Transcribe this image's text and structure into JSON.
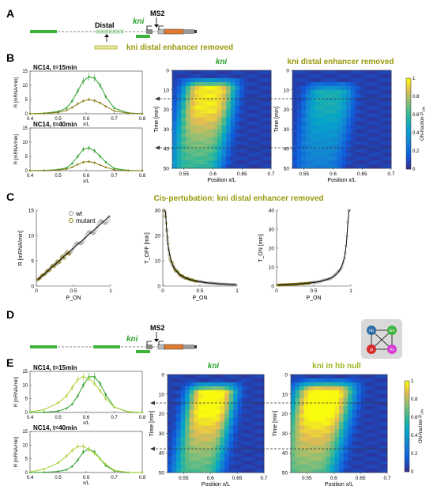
{
  "panels": {
    "A": {
      "letter": "A",
      "distal_label": "Distal",
      "kni_label": "kni",
      "ms2_label": "MS2",
      "caption": "kni distal enhancer removed"
    },
    "B": {
      "letter": "B",
      "heatmap_titles": [
        "kni",
        "kni distal enhancer removed"
      ],
      "colorbar_label": "ON-fraction P",
      "colorbar_sub": "ON",
      "colorbar_ticks": [
        "0",
        "0.2",
        "0.4",
        "0.6",
        "0.8",
        "1"
      ]
    },
    "C": {
      "letter": "C",
      "title": "Cis-pertubation: kni distal enhancer removed",
      "legend": [
        "wt",
        "mutant"
      ]
    },
    "D": {
      "letter": "D",
      "kni_label": "kni",
      "ms2_label": "MS2",
      "network_nodes": [
        "hb",
        "kni",
        "gt",
        "Kr"
      ]
    },
    "E": {
      "letter": "E",
      "heatmap_titles": [
        "kni",
        "kni in hb null"
      ],
      "colorbar_label": "ON-fraction P",
      "colorbar_sub": "ON",
      "colorbar_ticks": [
        "0",
        "0.2",
        "0.4",
        "0.6",
        "0.8",
        "1"
      ]
    }
  },
  "colors": {
    "wt_green": "#2ca02c",
    "mutant_olive": "#8b7d12",
    "light_green": "#a8d030",
    "orange": "#e07b30",
    "title_olive": "#9a9a10"
  },
  "chart_data": [
    {
      "id": "B1",
      "type": "line",
      "title": "NC14, t=15min",
      "xlabel": "x/L",
      "ylabel": "R [mRNA/min]",
      "xlim": [
        0.4,
        0.8
      ],
      "ylim": [
        0,
        15
      ],
      "xticks": [
        "0.4",
        "0.5",
        "0.6",
        "0.7",
        "0.8"
      ],
      "yticks": [
        "0",
        "5",
        "10",
        "15"
      ],
      "x": [
        0.4,
        0.45,
        0.5,
        0.53,
        0.55,
        0.57,
        0.59,
        0.61,
        0.63,
        0.65,
        0.67,
        0.7,
        0.75,
        0.8
      ],
      "series": [
        {
          "color": "#2ca02c",
          "values": [
            0,
            0.2,
            0.8,
            2,
            4.5,
            8,
            11.5,
            13,
            12.5,
            10,
            6,
            2,
            0.3,
            0
          ]
        },
        {
          "color": "#8b7d12",
          "values": [
            0,
            0.1,
            0.5,
            1.2,
            2.2,
            3.5,
            4.5,
            5,
            4.6,
            3.8,
            2.6,
            1,
            0.2,
            0
          ]
        }
      ]
    },
    {
      "id": "B2",
      "type": "line",
      "title": "NC14, t=40min",
      "xlabel": "x/L",
      "ylabel": "R [mRNA/min]",
      "xlim": [
        0.4,
        0.8
      ],
      "ylim": [
        0,
        15
      ],
      "xticks": [
        "0.4",
        "0.5",
        "0.6",
        "0.7",
        "0.8"
      ],
      "yticks": [
        "0",
        "5",
        "10",
        "15"
      ],
      "x": [
        0.4,
        0.45,
        0.5,
        0.53,
        0.55,
        0.57,
        0.59,
        0.61,
        0.63,
        0.65,
        0.67,
        0.7,
        0.75,
        0.8
      ],
      "series": [
        {
          "color": "#2ca02c",
          "values": [
            0,
            0.1,
            0.4,
            1,
            2.5,
            5,
            7.5,
            8,
            7,
            5,
            3,
            0.8,
            0.1,
            0
          ]
        },
        {
          "color": "#8b7d12",
          "values": [
            0,
            0.05,
            0.2,
            0.6,
            1.2,
            2.2,
            3,
            3.2,
            2.8,
            2,
            1.2,
            0.3,
            0,
            0
          ]
        }
      ]
    },
    {
      "id": "E1",
      "type": "line",
      "title": "NC14, t=15min",
      "xlabel": "x/L",
      "ylabel": "R [mRNA/min]",
      "xlim": [
        0.4,
        0.8
      ],
      "ylim": [
        0,
        15
      ],
      "xticks": [
        "0.4",
        "0.5",
        "0.6",
        "0.7",
        "0.8"
      ],
      "yticks": [
        "0",
        "5",
        "10",
        "15"
      ],
      "x": [
        0.4,
        0.45,
        0.5,
        0.53,
        0.55,
        0.57,
        0.59,
        0.61,
        0.63,
        0.65,
        0.67,
        0.7,
        0.75,
        0.8
      ],
      "series": [
        {
          "color": "#2ca02c",
          "values": [
            0,
            0.1,
            0.5,
            1.5,
            3,
            6,
            10,
            13,
            13,
            10.5,
            6.5,
            2,
            0.2,
            0
          ]
        },
        {
          "color": "#a8d030",
          "values": [
            0.2,
            1,
            3.5,
            6,
            9,
            12,
            13,
            12.5,
            10.5,
            8,
            5,
            2,
            0.3,
            0
          ]
        }
      ]
    },
    {
      "id": "E2",
      "type": "line",
      "title": "NC14, t=40min",
      "xlabel": "x/L",
      "ylabel": "R [mRNA/min]",
      "xlim": [
        0.4,
        0.8
      ],
      "ylim": [
        0,
        15
      ],
      "xticks": [
        "0.4",
        "0.5",
        "0.6",
        "0.7",
        "0.8"
      ],
      "yticks": [
        "0",
        "5",
        "10",
        "15"
      ],
      "x": [
        0.4,
        0.45,
        0.5,
        0.53,
        0.55,
        0.57,
        0.59,
        0.61,
        0.63,
        0.65,
        0.67,
        0.7,
        0.75,
        0.8
      ],
      "series": [
        {
          "color": "#2ca02c",
          "values": [
            0,
            0.1,
            0.4,
            1,
            2.2,
            4.5,
            7.5,
            8.5,
            7.5,
            5,
            2.5,
            0.6,
            0,
            0
          ]
        },
        {
          "color": "#a8d030",
          "values": [
            0.2,
            1.2,
            3.5,
            6,
            8,
            9.5,
            9.5,
            8.5,
            7,
            5,
            3,
            0.8,
            0.1,
            0
          ]
        }
      ]
    },
    {
      "id": "HB1",
      "type": "heatmap",
      "title": "kni",
      "xlabel": "Position x/L",
      "ylabel": "Time [min]",
      "xlim": [
        0.53,
        0.7
      ],
      "ylim": [
        0,
        50
      ],
      "xticks": [
        "0.55",
        "0.6",
        "0.65",
        "0.7"
      ],
      "yticks": [
        "0",
        "10",
        "20",
        "30",
        "40",
        "50"
      ],
      "peak": 0.6,
      "width": 0.045,
      "drift": -0.0006,
      "max": 0.9,
      "onset": 3,
      "decay": 55
    },
    {
      "id": "HB2",
      "type": "heatmap",
      "title": "kni distal enhancer removed",
      "xlabel": "Position x/L",
      "ylabel": "Time [min]",
      "xlim": [
        0.53,
        0.7
      ],
      "ylim": [
        0,
        50
      ],
      "xticks": [
        "0.55",
        "0.6",
        "0.65",
        "0.7"
      ],
      "yticks": [
        "0",
        "10",
        "20",
        "30",
        "40",
        "50"
      ],
      "peak": 0.6,
      "width": 0.04,
      "drift": -0.0005,
      "max": 0.45,
      "onset": 5,
      "decay": 40
    },
    {
      "id": "HE1",
      "type": "heatmap",
      "title": "kni",
      "xlabel": "Position x/L",
      "ylabel": "Time [min]",
      "xlim": [
        0.52,
        0.7
      ],
      "ylim": [
        0,
        50
      ],
      "xticks": [
        "0.55",
        "0.6",
        "0.65",
        "0.7"
      ],
      "yticks": [
        "0",
        "10",
        "20",
        "30",
        "40",
        "50"
      ],
      "peak": 0.61,
      "width": 0.045,
      "drift": -0.0007,
      "max": 0.95,
      "onset": 3,
      "decay": 60
    },
    {
      "id": "HE2",
      "type": "heatmap",
      "title": "kni in hb null",
      "xlabel": "Position x/L",
      "ylabel": "Time [min]",
      "xlim": [
        0.52,
        0.7
      ],
      "ylim": [
        0,
        50
      ],
      "xticks": [
        "0.55",
        "0.6",
        "0.65",
        "0.7"
      ],
      "yticks": [
        "0",
        "10",
        "20",
        "30",
        "40",
        "50"
      ],
      "peak": 0.59,
      "width": 0.055,
      "drift": -0.0008,
      "max": 0.98,
      "onset": 2,
      "decay": 65
    },
    {
      "id": "C1",
      "type": "scatter",
      "xlabel": "P_ON",
      "ylabel": "R [mRNA/min]",
      "xlim": [
        0,
        1
      ],
      "ylim": [
        0,
        15
      ],
      "xticks": [
        "0",
        "0.5",
        "1"
      ],
      "yticks": [
        "0",
        "5",
        "10",
        "15"
      ],
      "curve": "linear"
    },
    {
      "id": "C2",
      "type": "scatter",
      "xlabel": "P_ON",
      "ylabel": "T_OFF [min]",
      "xlim": [
        0,
        1
      ],
      "ylim": [
        0,
        30
      ],
      "xticks": [
        "0",
        "0.5",
        "1"
      ],
      "yticks": [
        "0",
        "10",
        "20",
        "30"
      ],
      "curve": "toff"
    },
    {
      "id": "C3",
      "type": "scatter",
      "xlabel": "P_ON",
      "ylabel": "T_ON [min]",
      "xlim": [
        0,
        1
      ],
      "ylim": [
        0,
        40
      ],
      "xticks": [
        "0",
        "0.5",
        "1"
      ],
      "yticks": [
        "0",
        "10",
        "20",
        "30",
        "40"
      ],
      "curve": "ton"
    }
  ]
}
